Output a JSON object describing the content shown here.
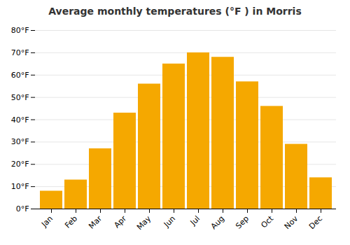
{
  "chart_data": {
    "type": "bar",
    "title": "Average monthly temperatures (°F ) in Morris",
    "categories": [
      "Jan",
      "Feb",
      "Mar",
      "Apr",
      "May",
      "Jun",
      "Jul",
      "Aug",
      "Sep",
      "Oct",
      "Nov",
      "Dec"
    ],
    "values": [
      8,
      13,
      27,
      43,
      56,
      65,
      70,
      68,
      57,
      46,
      29,
      14
    ],
    "color": "#F5A800",
    "ylim": [
      0,
      80
    ],
    "yticks": [
      {
        "value": 0,
        "label": "0°F"
      },
      {
        "value": 10,
        "label": "10°F"
      },
      {
        "value": 20,
        "label": "20°F"
      },
      {
        "value": 30,
        "label": "30°F"
      },
      {
        "value": 40,
        "label": "40°F"
      },
      {
        "value": 50,
        "label": "50°F"
      },
      {
        "value": 60,
        "label": "60°F"
      },
      {
        "value": 70,
        "label": "70°F"
      },
      {
        "value": 80,
        "label": "80°F"
      }
    ],
    "grid": true
  }
}
